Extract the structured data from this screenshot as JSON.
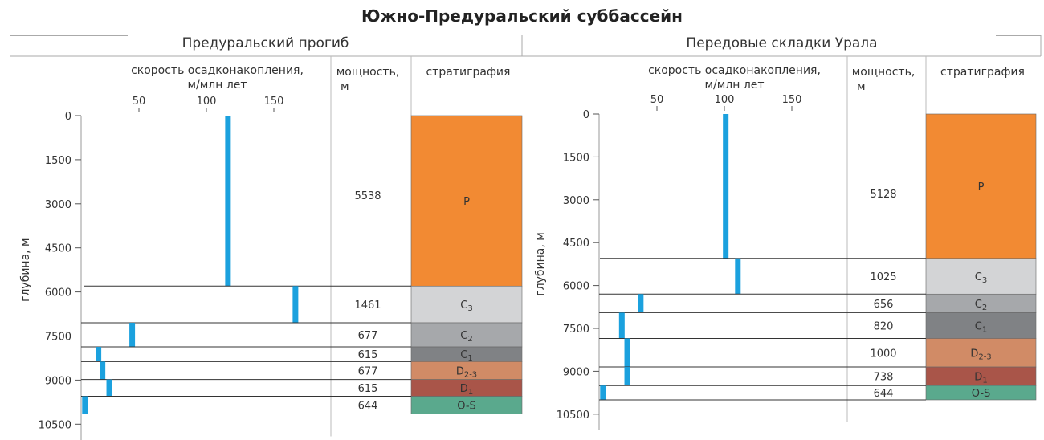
{
  "title": "Южно-Предуральский суббассейн",
  "colors": {
    "bar": "#1ba1de",
    "P": "#f28a33",
    "C3": "#d3d4d6",
    "C2": "#a6a8ab",
    "C1": "#808285",
    "D23": "#d18b66",
    "D1": "#a95549",
    "OS": "#5aa98d"
  },
  "chart_data": [
    {
      "type": "bar",
      "title": "Предуральский прогиб",
      "xlabel": "скорость осадконакопления,\nм/млн лет",
      "ylabel": "глубина, м",
      "xticks": [
        50,
        100,
        150
      ],
      "yticks": [
        0,
        1500,
        3000,
        4500,
        6000,
        7500,
        9000,
        10500
      ],
      "thickness_header": "мощность,\nм",
      "strat_header": "стратиграфия",
      "layers": [
        {
          "strat": "P",
          "strat_sub": "",
          "top": 0,
          "bottom": 5800,
          "rate": 116,
          "thickness": "5538",
          "color": "P"
        },
        {
          "strat": "C",
          "strat_sub": "3",
          "top": 5800,
          "bottom": 7050,
          "rate": 166,
          "thickness": "1461",
          "color": "C3"
        },
        {
          "strat": "C",
          "strat_sub": "2",
          "top": 7050,
          "bottom": 7870,
          "rate": 45,
          "thickness": "677",
          "color": "C2"
        },
        {
          "strat": "C",
          "strat_sub": "1",
          "top": 7870,
          "bottom": 8370,
          "rate": 20,
          "thickness": "615",
          "color": "C1"
        },
        {
          "strat": "D",
          "strat_sub": "2-3",
          "top": 8370,
          "bottom": 8980,
          "rate": 23,
          "thickness": "677",
          "color": "D23"
        },
        {
          "strat": "D",
          "strat_sub": "1",
          "top": 8980,
          "bottom": 9550,
          "rate": 28,
          "thickness": "615",
          "color": "D1"
        },
        {
          "strat": "O-S",
          "strat_sub": "",
          "top": 9550,
          "bottom": 10150,
          "rate": 10,
          "thickness": "644",
          "color": "OS"
        }
      ]
    },
    {
      "type": "bar",
      "title": "Передовые складки Урала",
      "xlabel": "скорость осадконакопления,\nм/млн лет",
      "ylabel": "глубина, м",
      "xticks": [
        50,
        100,
        150
      ],
      "yticks": [
        0,
        1500,
        3000,
        4500,
        6000,
        7500,
        9000,
        10500
      ],
      "thickness_header": "мощность,\nм",
      "strat_header": "стратиграфия",
      "layers": [
        {
          "strat": "P",
          "strat_sub": "",
          "top": 0,
          "bottom": 5050,
          "rate": 101,
          "thickness": "5128",
          "color": "P"
        },
        {
          "strat": "C",
          "strat_sub": "3",
          "top": 5050,
          "bottom": 6300,
          "rate": 110,
          "thickness": "1025",
          "color": "C3"
        },
        {
          "strat": "C",
          "strat_sub": "2",
          "top": 6300,
          "bottom": 6950,
          "rate": 38,
          "thickness": "656",
          "color": "C2"
        },
        {
          "strat": "C",
          "strat_sub": "1",
          "top": 6950,
          "bottom": 7850,
          "rate": 24,
          "thickness": "820",
          "color": "C1"
        },
        {
          "strat": "D",
          "strat_sub": "2-3",
          "top": 7850,
          "bottom": 8850,
          "rate": 28,
          "thickness": "1000",
          "color": "D23"
        },
        {
          "strat": "D",
          "strat_sub": "1",
          "top": 8850,
          "bottom": 9500,
          "rate": 28,
          "thickness": "738",
          "color": "D1"
        },
        {
          "strat": "O-S",
          "strat_sub": "",
          "top": 9500,
          "bottom": 10000,
          "rate": 10,
          "thickness": "644",
          "color": "OS"
        }
      ]
    }
  ]
}
